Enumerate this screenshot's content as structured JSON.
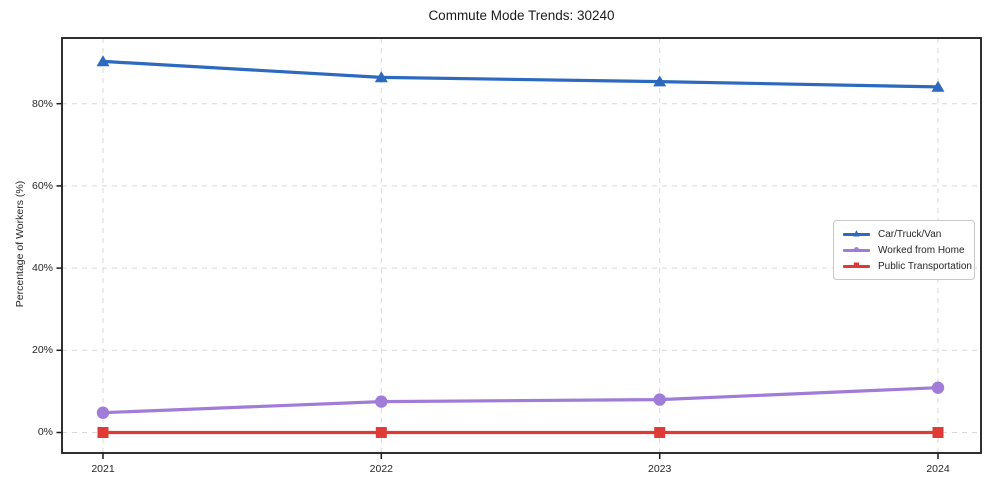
{
  "chart_data": {
    "type": "line",
    "title": "Commute Mode Trends: 30240",
    "xlabel": "",
    "ylabel": "Percentage of Workers (%)",
    "categories": [
      "2021",
      "2022",
      "2023",
      "2024"
    ],
    "x_values": [
      2021,
      2022,
      2023,
      2024
    ],
    "y_ticks": [
      {
        "value": 0,
        "label": "0%"
      },
      {
        "value": 20,
        "label": "20%"
      },
      {
        "value": 40,
        "label": "40%"
      },
      {
        "value": 60,
        "label": "60%"
      },
      {
        "value": 80,
        "label": "80%"
      }
    ],
    "ylim": [
      -5,
      96
    ],
    "grid": true,
    "grid_style": "dashed",
    "legend_position": "center-right",
    "series": [
      {
        "name": "Car/Truck/Van",
        "marker": "triangle",
        "marker_glyph": "▲",
        "color": "#2d69be",
        "values": [
          90.3,
          86.4,
          85.4,
          84.1
        ]
      },
      {
        "name": "Worked from Home",
        "marker": "circle",
        "marker_glyph": "●",
        "color": "#a07cd8",
        "values": [
          4.8,
          7.5,
          8.0,
          10.9
        ]
      },
      {
        "name": "Public Transportation",
        "marker": "square",
        "marker_glyph": "■",
        "color": "#e03a36",
        "values": [
          0,
          0,
          0,
          0
        ]
      }
    ],
    "style": {
      "background": "#ffffff",
      "grid_color": "#d9d9d9",
      "spine_color": "#1a1a1a",
      "text_color": "#262626"
    }
  }
}
